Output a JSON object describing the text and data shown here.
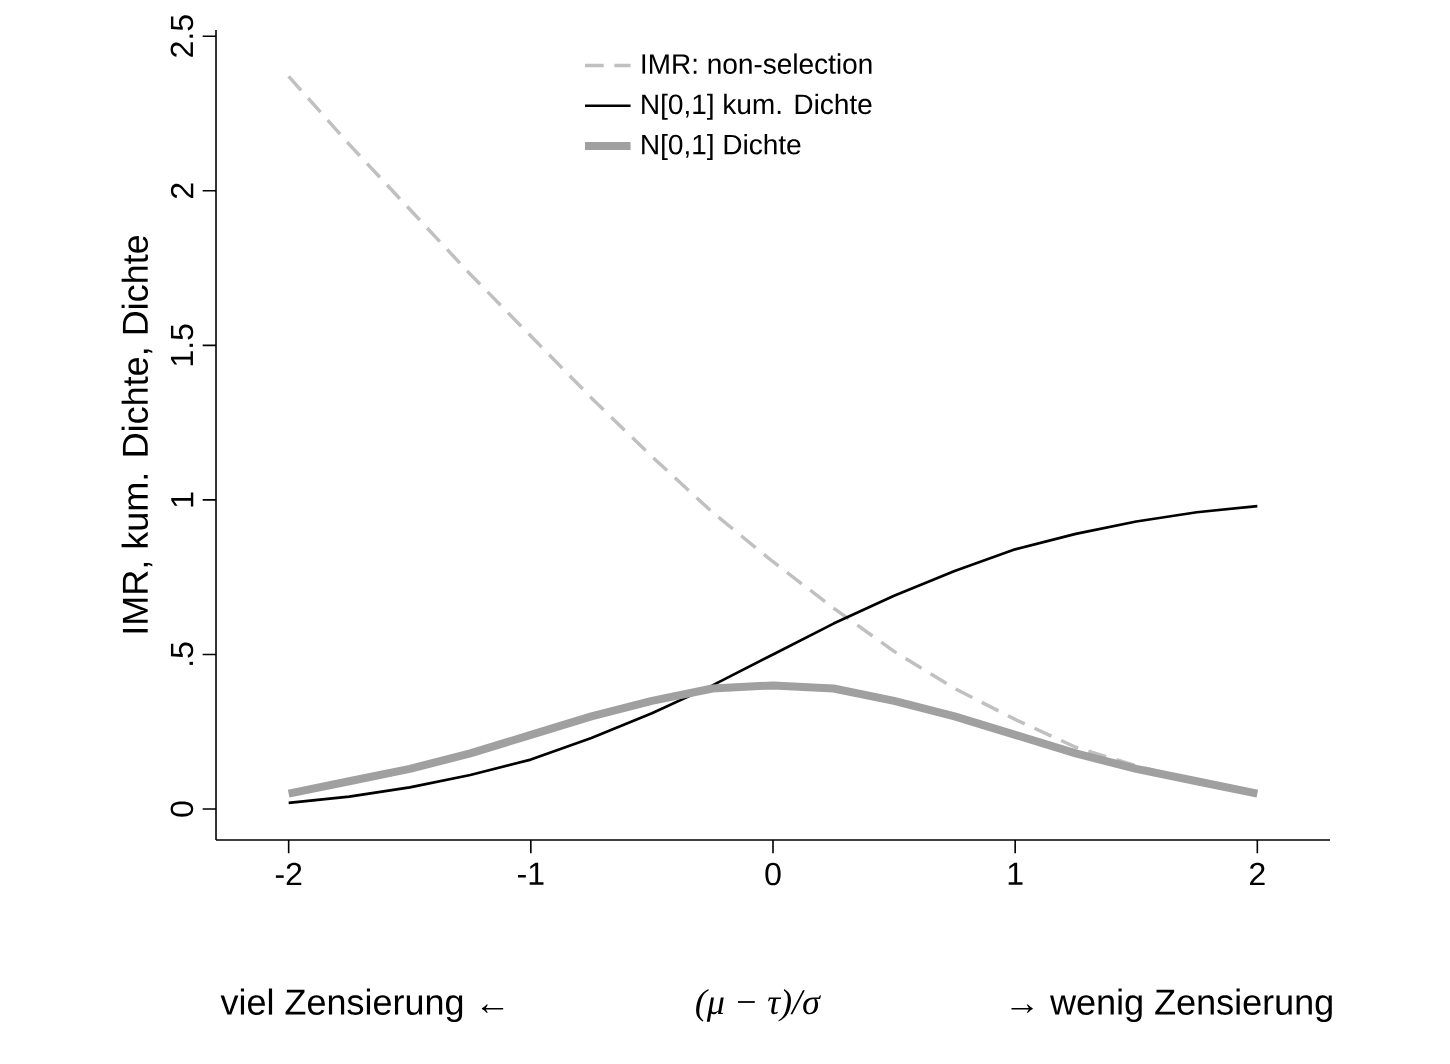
{
  "chart_data": {
    "type": "line",
    "xlabel": "(μ − τ)/σ",
    "ylabel": "IMR, kum. Dichte, Dichte",
    "annotations": [
      "viel Zensierung  ←",
      "→  wenig Zensierung"
    ],
    "x": [
      -2,
      -1.75,
      -1.5,
      -1.25,
      -1,
      -0.75,
      -0.5,
      -0.25,
      0,
      0.25,
      0.5,
      0.75,
      1,
      1.25,
      1.5,
      1.75,
      2
    ],
    "series": [
      {
        "name": "IMR: non-selection",
        "color": "#c0c0c0",
        "line_style": "dashed",
        "values": [
          2.37,
          2.15,
          1.94,
          1.73,
          1.53,
          1.33,
          1.14,
          0.96,
          0.8,
          0.65,
          0.51,
          0.39,
          0.29,
          0.2,
          0.14,
          0.09,
          0.05
        ]
      },
      {
        "name": "N[0,1] kum. Dichte",
        "color": "#000000",
        "line_style": "solid",
        "values": [
          0.02,
          0.04,
          0.07,
          0.11,
          0.16,
          0.23,
          0.31,
          0.4,
          0.5,
          0.6,
          0.69,
          0.77,
          0.84,
          0.89,
          0.93,
          0.96,
          0.98
        ]
      },
      {
        "name": "N[0,1] Dichte",
        "color": "#a0a0a0",
        "line_style": "solid",
        "values": [
          0.05,
          0.09,
          0.13,
          0.18,
          0.24,
          0.3,
          0.35,
          0.39,
          0.4,
          0.39,
          0.35,
          0.3,
          0.24,
          0.18,
          0.13,
          0.09,
          0.05
        ]
      }
    ],
    "xlim": [
      -2.3,
      2.3
    ],
    "ylim": [
      -0.1,
      2.52
    ],
    "xticks": [
      {
        "value": -2,
        "label": "-2"
      },
      {
        "value": -1,
        "label": "-1"
      },
      0,
      1,
      2
    ],
    "yticks": [
      0,
      {
        "value": 0.5,
        "label": ".5"
      },
      1,
      1.5,
      2,
      2.5
    ],
    "grid": false,
    "legend": "top",
    "marker": "none"
  }
}
